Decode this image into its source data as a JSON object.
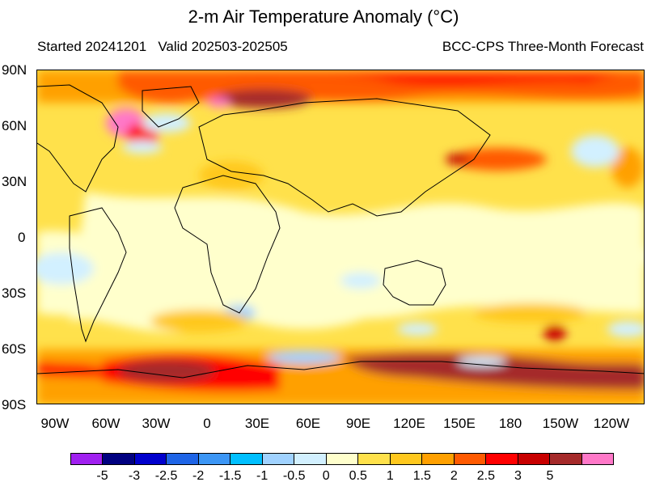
{
  "title": "2-m Air Temperature Anomaly (°C)",
  "started": "Started 20241201",
  "valid": "Valid 202503-202505",
  "source": "BCC-CPS Three-Month Forecast",
  "lat_labels": [
    "90N",
    "60N",
    "30N",
    "0",
    "30S",
    "60S",
    "90S"
  ],
  "lon_labels": [
    "90W",
    "60W",
    "30W",
    "0",
    "30E",
    "60E",
    "90E",
    "120E",
    "150E",
    "180",
    "150W",
    "120W"
  ],
  "colorbar": {
    "colors": [
      "#a020f0",
      "#000080",
      "#0000cd",
      "#1e64e6",
      "#3c96f5",
      "#00bfff",
      "#a0d2ff",
      "#d2f0ff",
      "#ffffcc",
      "#ffe14b",
      "#ffc81e",
      "#ffa000",
      "#ff5a00",
      "#ff0000",
      "#c80000",
      "#a52a2a",
      "#ff78c8"
    ],
    "labels": [
      "-5",
      "-3",
      "-2.5",
      "-2",
      "-1.5",
      "-1",
      "-0.5",
      "0",
      "0.5",
      "1",
      "1.5",
      "2",
      "2.5",
      "3",
      "5"
    ]
  }
}
